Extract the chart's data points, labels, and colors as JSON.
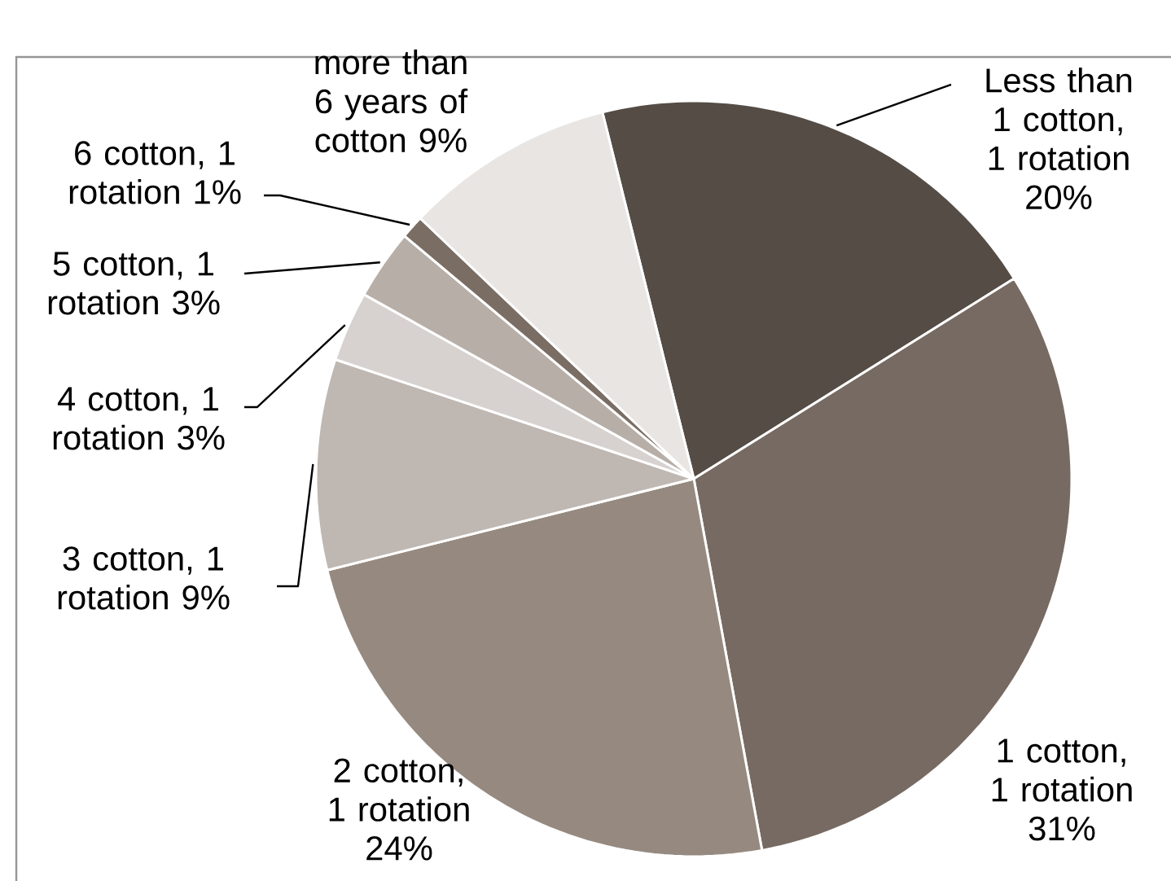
{
  "chart_data": {
    "type": "pie",
    "categories": [
      "Less than 1 cotton, 1 rotation",
      "1 cotton, 1 rotation",
      "2 cotton, 1 rotation",
      "3 cotton, 1 rotation",
      "4 cotton, 1 rotation",
      "5 cotton, 1 rotation",
      "6 cotton, 1 rotation",
      "more than 6 years of cotton"
    ],
    "values": [
      20,
      31,
      24,
      9,
      3,
      3,
      1,
      9
    ],
    "value_labels": [
      "20%",
      "31%",
      "24%",
      "9%",
      "3%",
      "3%",
      "1%",
      "9%"
    ],
    "colors": [
      "#544c45",
      "#766a62",
      "#968a80",
      "#bfb7b2",
      "#d7d2cf",
      "#b7aea8",
      "#7a6d64",
      "#e9e5e3"
    ]
  }
}
